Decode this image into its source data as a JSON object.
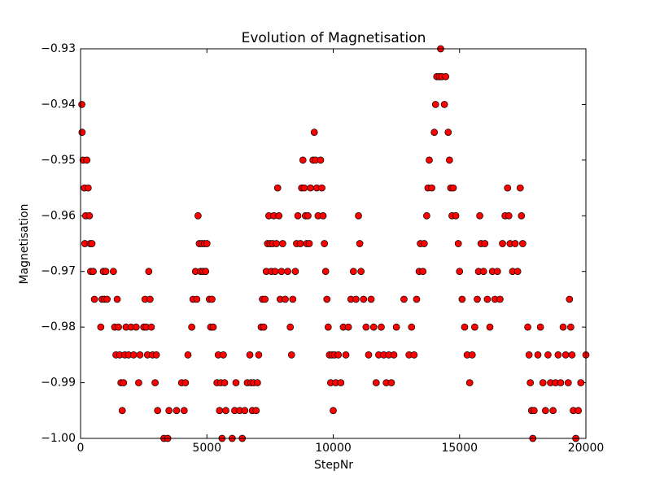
{
  "chart_data": {
    "type": "scatter",
    "title": "Evolution of Magnetisation",
    "x_label": "StepNr",
    "y_label": "Magnetisation",
    "color": "#ff0000",
    "xlim": [
      0,
      20000
    ],
    "ylim": [
      -1.0,
      -0.93
    ],
    "xticks": [
      0,
      5000,
      10000,
      15000,
      20000
    ],
    "yticks": [
      {
        "value": -1.0,
        "label": "−1.00"
      },
      {
        "value": -0.99,
        "label": "−0.99"
      },
      {
        "value": -0.98,
        "label": "−0.98"
      },
      {
        "value": -0.97,
        "label": "−0.97"
      },
      {
        "value": -0.96,
        "label": "−0.96"
      },
      {
        "value": -0.95,
        "label": "−0.95"
      },
      {
        "value": -0.94,
        "label": "−0.94"
      },
      {
        "value": -0.93,
        "label": "−0.93"
      }
    ],
    "x": [
      50,
      60,
      100,
      150,
      170,
      200,
      250,
      300,
      350,
      380,
      400,
      450,
      500,
      550,
      800,
      850,
      900,
      950,
      1000,
      1050,
      1300,
      1350,
      1400,
      1450,
      1500,
      1550,
      1600,
      1650,
      1700,
      1750,
      1800,
      1900,
      2000,
      2100,
      2200,
      2300,
      2350,
      2500,
      2550,
      2600,
      2650,
      2700,
      2750,
      2800,
      2850,
      2950,
      3000,
      3050,
      3300,
      3450,
      3500,
      3800,
      4000,
      4100,
      4150,
      4250,
      4400,
      4450,
      4550,
      4600,
      4650,
      4700,
      4750,
      4800,
      4850,
      4900,
      4950,
      5000,
      5100,
      5150,
      5200,
      5250,
      5400,
      5450,
      5500,
      5550,
      5600,
      5650,
      5700,
      5750,
      6000,
      6100,
      6150,
      6300,
      6400,
      6500,
      6600,
      6700,
      6750,
      6800,
      6850,
      6950,
      7000,
      7050,
      7150,
      7200,
      7250,
      7300,
      7350,
      7400,
      7450,
      7500,
      7550,
      7600,
      7650,
      7700,
      7750,
      7800,
      7850,
      7900,
      7950,
      8000,
      8100,
      8200,
      8300,
      8350,
      8400,
      8500,
      8550,
      8600,
      8700,
      8750,
      8800,
      8850,
      8900,
      8950,
      9000,
      9050,
      9100,
      9200,
      9250,
      9300,
      9350,
      9400,
      9500,
      9550,
      9600,
      9650,
      9700,
      9750,
      9800,
      9850,
      9900,
      9950,
      10000,
      10050,
      10100,
      10200,
      10300,
      10400,
      10500,
      10600,
      10700,
      10800,
      10900,
      11000,
      11050,
      11100,
      11200,
      11300,
      11400,
      11500,
      11600,
      11700,
      11800,
      11900,
      12000,
      12100,
      12200,
      12300,
      12400,
      12500,
      12800,
      13000,
      13100,
      13200,
      13300,
      13400,
      13450,
      13550,
      13600,
      13700,
      13750,
      13800,
      13900,
      14000,
      14050,
      14100,
      14200,
      14250,
      14300,
      14400,
      14450,
      14550,
      14600,
      14650,
      14700,
      14750,
      14850,
      14950,
      15000,
      15100,
      15200,
      15300,
      15400,
      15500,
      15600,
      15700,
      15750,
      15800,
      15850,
      15950,
      16000,
      16100,
      16200,
      16300,
      16400,
      16500,
      16600,
      16700,
      16800,
      16900,
      16950,
      17000,
      17100,
      17200,
      17300,
      17400,
      17450,
      17500,
      17700,
      17750,
      17800,
      17850,
      17900,
      17950,
      18100,
      18200,
      18300,
      18400,
      18500,
      18600,
      18700,
      18800,
      18900,
      19000,
      19100,
      19200,
      19300,
      19350,
      19400,
      19450,
      19500,
      19600,
      19700,
      19800,
      20000
    ],
    "values": [
      -0.94,
      -0.945,
      -0.95,
      -0.955,
      -0.965,
      -0.96,
      -0.95,
      -0.955,
      -0.96,
      -0.965,
      -0.97,
      -0.965,
      -0.97,
      -0.975,
      -0.98,
      -0.975,
      -0.97,
      -0.975,
      -0.97,
      -0.975,
      -0.97,
      -0.98,
      -0.985,
      -0.975,
      -0.98,
      -0.985,
      -0.99,
      -0.995,
      -0.99,
      -0.985,
      -0.98,
      -0.985,
      -0.98,
      -0.985,
      -0.98,
      -0.99,
      -0.985,
      -0.98,
      -0.975,
      -0.98,
      -0.985,
      -0.97,
      -0.975,
      -0.98,
      -0.985,
      -0.99,
      -0.985,
      -0.995,
      -1.0,
      -1.0,
      -0.995,
      -0.995,
      -0.99,
      -0.995,
      -0.99,
      -0.985,
      -0.98,
      -0.975,
      -0.97,
      -0.975,
      -0.96,
      -0.965,
      -0.97,
      -0.965,
      -0.97,
      -0.965,
      -0.97,
      -0.965,
      -0.975,
      -0.98,
      -0.975,
      -0.98,
      -0.99,
      -0.985,
      -0.995,
      -0.99,
      -1.0,
      -0.985,
      -0.99,
      -0.995,
      -1.0,
      -0.995,
      -0.99,
      -0.995,
      -1.0,
      -0.995,
      -0.99,
      -0.985,
      -0.99,
      -0.995,
      -0.99,
      -0.995,
      -0.99,
      -0.985,
      -0.98,
      -0.975,
      -0.98,
      -0.975,
      -0.97,
      -0.965,
      -0.96,
      -0.965,
      -0.97,
      -0.965,
      -0.96,
      -0.97,
      -0.965,
      -0.955,
      -0.96,
      -0.975,
      -0.97,
      -0.965,
      -0.975,
      -0.97,
      -0.98,
      -0.985,
      -0.975,
      -0.97,
      -0.965,
      -0.96,
      -0.965,
      -0.955,
      -0.95,
      -0.955,
      -0.96,
      -0.965,
      -0.96,
      -0.965,
      -0.955,
      -0.95,
      -0.945,
      -0.95,
      -0.955,
      -0.96,
      -0.95,
      -0.955,
      -0.96,
      -0.965,
      -0.97,
      -0.975,
      -0.98,
      -0.985,
      -0.99,
      -0.985,
      -0.995,
      -0.985,
      -0.99,
      -0.985,
      -0.99,
      -0.98,
      -0.985,
      -0.98,
      -0.975,
      -0.97,
      -0.975,
      -0.96,
      -0.965,
      -0.97,
      -0.975,
      -0.98,
      -0.985,
      -0.975,
      -0.98,
      -0.99,
      -0.985,
      -0.98,
      -0.985,
      -0.99,
      -0.985,
      -0.99,
      -0.985,
      -0.98,
      -0.975,
      -0.985,
      -0.98,
      -0.985,
      -0.975,
      -0.97,
      -0.965,
      -0.97,
      -0.965,
      -0.96,
      -0.955,
      -0.95,
      -0.955,
      -0.945,
      -0.94,
      -0.935,
      -0.935,
      -0.93,
      -0.935,
      -0.94,
      -0.935,
      -0.945,
      -0.95,
      -0.955,
      -0.96,
      -0.955,
      -0.96,
      -0.965,
      -0.97,
      -0.975,
      -0.98,
      -0.985,
      -0.99,
      -0.985,
      -0.98,
      -0.975,
      -0.97,
      -0.96,
      -0.965,
      -0.97,
      -0.965,
      -0.975,
      -0.98,
      -0.97,
      -0.975,
      -0.97,
      -0.975,
      -0.965,
      -0.96,
      -0.955,
      -0.96,
      -0.965,
      -0.97,
      -0.965,
      -0.97,
      -0.955,
      -0.96,
      -0.965,
      -0.98,
      -0.985,
      -0.99,
      -0.995,
      -1.0,
      -0.995,
      -0.985,
      -0.98,
      -0.99,
      -0.995,
      -0.985,
      -0.99,
      -0.995,
      -0.99,
      -0.985,
      -0.99,
      -0.98,
      -0.985,
      -0.99,
      -0.975,
      -0.98,
      -0.985,
      -0.995,
      -1.0,
      -0.995,
      -0.99,
      -0.985
    ]
  }
}
